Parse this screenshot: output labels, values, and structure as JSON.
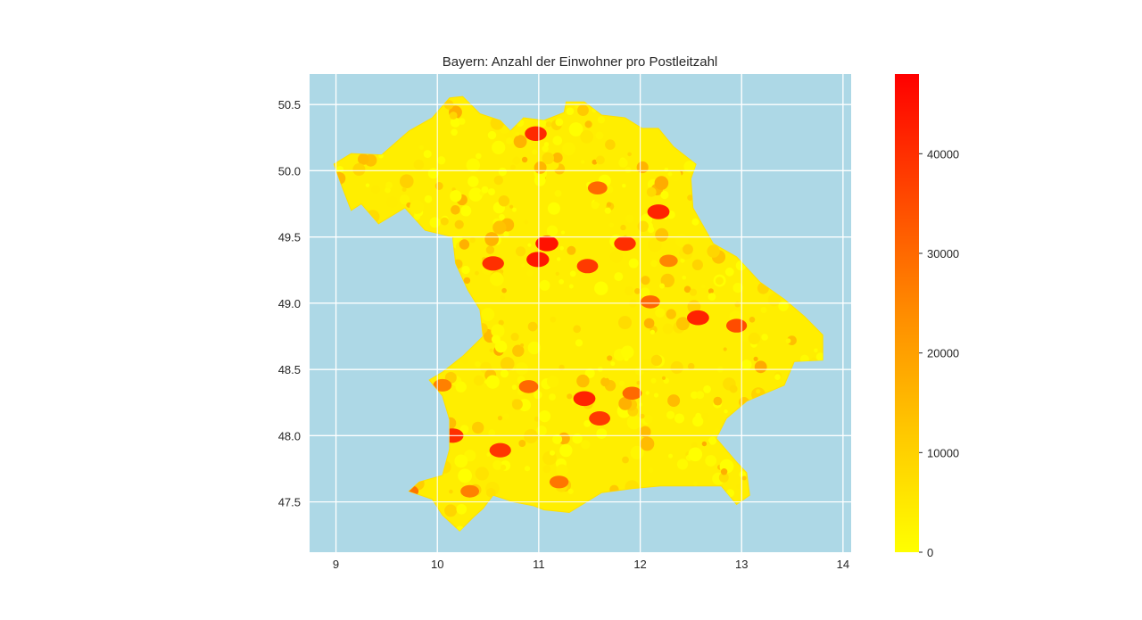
{
  "title": "Bayern: Anzahl der Einwohner pro Postleitzahl",
  "map": {
    "background_color": "#add8e6",
    "grid_color": "#ffffff",
    "region": "Bayern",
    "x_range": [
      8.74,
      14.08
    ],
    "y_range": [
      47.12,
      50.73
    ],
    "x_ticks": [
      "9",
      "10",
      "11",
      "12",
      "13",
      "14"
    ],
    "y_ticks": [
      "47.5",
      "48.0",
      "48.5",
      "49.0",
      "49.5",
      "50.0",
      "50.5"
    ],
    "hotspots": [
      {
        "lon": 11.08,
        "lat": 49.45,
        "value": 45000
      },
      {
        "lon": 10.99,
        "lat": 49.33,
        "value": 44000
      },
      {
        "lon": 10.55,
        "lat": 49.3,
        "value": 40000
      },
      {
        "lon": 11.48,
        "lat": 49.28,
        "value": 38000
      },
      {
        "lon": 11.85,
        "lat": 49.45,
        "value": 40000
      },
      {
        "lon": 12.18,
        "lat": 49.69,
        "value": 42000
      },
      {
        "lon": 10.97,
        "lat": 50.28,
        "value": 41000
      },
      {
        "lon": 12.57,
        "lat": 48.89,
        "value": 42000
      },
      {
        "lon": 12.95,
        "lat": 48.83,
        "value": 35000
      },
      {
        "lon": 11.45,
        "lat": 48.28,
        "value": 42000
      },
      {
        "lon": 11.6,
        "lat": 48.13,
        "value": 38000
      },
      {
        "lon": 10.15,
        "lat": 48.0,
        "value": 40000
      },
      {
        "lon": 10.62,
        "lat": 47.89,
        "value": 39000
      },
      {
        "lon": 10.9,
        "lat": 48.37,
        "value": 30000
      },
      {
        "lon": 11.58,
        "lat": 49.87,
        "value": 30000
      },
      {
        "lon": 12.1,
        "lat": 49.01,
        "value": 30000
      },
      {
        "lon": 11.2,
        "lat": 47.65,
        "value": 28000
      },
      {
        "lon": 10.32,
        "lat": 47.58,
        "value": 26000
      },
      {
        "lon": 9.72,
        "lat": 47.58,
        "value": 28000
      },
      {
        "lon": 10.05,
        "lat": 48.38,
        "value": 26000
      },
      {
        "lon": 12.28,
        "lat": 49.32,
        "value": 25000
      },
      {
        "lon": 11.92,
        "lat": 48.32,
        "value": 30000
      }
    ]
  },
  "colorbar": {
    "min": 0,
    "max": 48000,
    "colors": [
      "#ffff00",
      "#ffc800",
      "#ff8c00",
      "#ff4600",
      "#ff0000"
    ],
    "ticks": [
      "0",
      "10000",
      "20000",
      "30000",
      "40000"
    ]
  }
}
